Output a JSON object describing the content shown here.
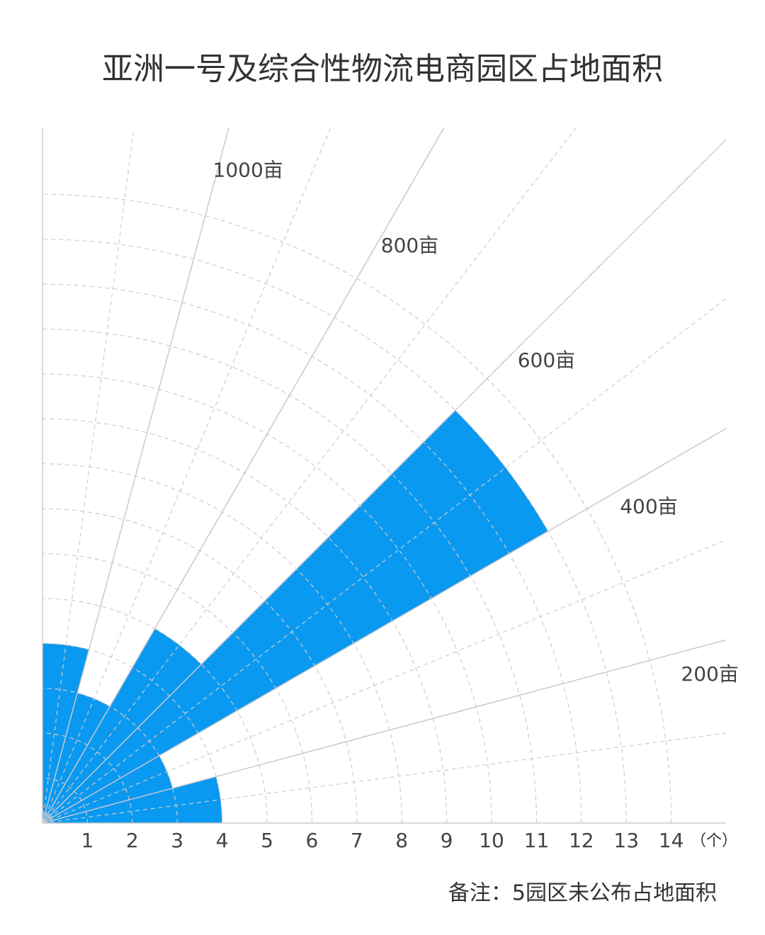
{
  "chart_data": {
    "type": "polar_histogram",
    "title": "亚洲一号及综合性物流电商园区占地面积",
    "note": "备注：5园区未公布占地面积",
    "radial_unit": "（个）",
    "bins": [
      0,
      200,
      400,
      600,
      800,
      1000,
      1200
    ],
    "values": [
      4,
      3,
      13,
      5,
      3,
      4
    ],
    "color": "#0a99f0",
    "thetalim": [
      0,
      1200
    ],
    "thetaticks": [
      {
        "value": 200,
        "label": "200亩"
      },
      {
        "value": 400,
        "label": "400亩"
      },
      {
        "value": 600,
        "label": "600亩"
      },
      {
        "value": 800,
        "label": "800亩"
      },
      {
        "value": 1000,
        "label": "1000亩"
      }
    ],
    "rlim": [
      0,
      15
    ],
    "rticks": [
      1,
      2,
      3,
      4,
      5,
      6,
      7,
      8,
      9,
      10,
      11,
      12,
      13,
      14
    ],
    "grid": true
  }
}
